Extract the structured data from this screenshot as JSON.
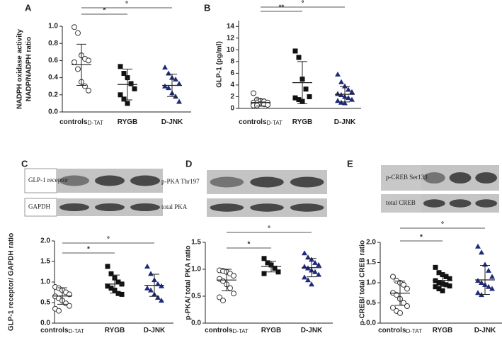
{
  "chart_data": [
    {
      "type": "dotplot",
      "panel": "A",
      "ylabel": [
        "NADPH oxidase activity",
        "NADP/NADPH ratio"
      ],
      "ylim": [
        0,
        1
      ],
      "yticks": [
        {
          "value": 0,
          "label": "0.0"
        },
        0.2,
        0.4,
        0.6,
        0.8,
        {
          "value": 1,
          "label": "1.0"
        }
      ],
      "comparisons": [
        "*",
        "°"
      ],
      "series": [
        {
          "name": "controls",
          "subscript": "D-TAT",
          "marker": "circle",
          "color": "#333333",
          "values": [
            0.99,
            0.92,
            0.66,
            0.62,
            0.6,
            0.58,
            0.5,
            0.35,
            0.3,
            0.25
          ],
          "mean": 0.55,
          "sd": 0.24
        },
        {
          "name": "RYGB",
          "marker": "square",
          "color": "#111111",
          "values": [
            0.53,
            0.45,
            0.4,
            0.33,
            0.27,
            0.2,
            0.15,
            0.1
          ],
          "mean": 0.32,
          "sd": 0.18
        },
        {
          "name": "D-JNK",
          "marker": "triangle",
          "color": "#1f2a7a",
          "values": [
            0.52,
            0.45,
            0.4,
            0.38,
            0.33,
            0.3,
            0.28,
            0.22,
            0.18,
            0.12
          ],
          "mean": 0.31,
          "sd": 0.13
        }
      ]
    },
    {
      "type": "dotplot",
      "panel": "B",
      "ylabel": [
        "GLP-1 (pg/ml)"
      ],
      "ylim": [
        0,
        15
      ],
      "yticks": [
        0,
        2,
        4,
        6,
        8,
        10,
        12,
        14
      ],
      "comparisons": [
        "**",
        "°"
      ],
      "series": [
        {
          "name": "controls",
          "subscript": "D-TAT",
          "marker": "circle",
          "color": "#333333",
          "values": [
            2.6,
            1.5,
            1.3,
            1.2,
            1.0,
            1.0,
            0.9,
            0.8,
            0.7,
            0.6,
            0.5,
            0.5
          ],
          "mean": 1.0,
          "sd": 0.6
        },
        {
          "name": "RYGB",
          "marker": "square",
          "color": "#111111",
          "values": [
            9.8,
            8.7,
            5.0,
            3.3,
            2.0,
            1.8,
            1.5,
            1.2
          ],
          "mean": 4.4,
          "sd": 3.6
        },
        {
          "name": "D-JNK",
          "marker": "triangle",
          "color": "#1f2a7a",
          "values": [
            5.8,
            4.5,
            3.8,
            3.2,
            2.8,
            2.5,
            2.3,
            2.0,
            1.8,
            1.5,
            1.3,
            1.0,
            0.9
          ],
          "mean": 2.4,
          "sd": 1.3
        }
      ]
    },
    {
      "type": "dotplot",
      "panel": "C",
      "ylabel": [
        "GLP-1 receptor/ GAPDH ratio"
      ],
      "blots": [
        "GLP-1 receptor",
        "GAPDH"
      ],
      "ylim": [
        0,
        2
      ],
      "yticks": [
        {
          "value": 0,
          "label": "0.0"
        },
        0.5,
        {
          "value": 1,
          "label": "1.0"
        },
        1.5,
        {
          "value": 2,
          "label": "2.0"
        }
      ],
      "comparisons": [
        "*",
        "°"
      ],
      "series": [
        {
          "name": "controls",
          "subscript": "D-TAT",
          "marker": "circle",
          "color": "#333333",
          "values": [
            0.88,
            0.85,
            0.8,
            0.75,
            0.7,
            0.65,
            0.6,
            0.55,
            0.48,
            0.42,
            0.35,
            0.3
          ],
          "mean": 0.66,
          "sd": 0.2
        },
        {
          "name": "RYGB",
          "marker": "square",
          "color": "#111111",
          "values": [
            1.38,
            1.2,
            1.1,
            1.0,
            0.95,
            0.9,
            0.85,
            0.8,
            0.72,
            0.7
          ],
          "mean": 0.95,
          "sd": 0.22
        },
        {
          "name": "D-JNK",
          "marker": "triangle",
          "color": "#1f2a7a",
          "values": [
            1.38,
            1.2,
            1.05,
            0.95,
            0.9,
            0.85,
            0.8,
            0.7,
            0.62,
            0.55
          ],
          "mean": 0.92,
          "sd": 0.27
        }
      ]
    },
    {
      "type": "dotplot",
      "panel": "D",
      "ylabel": [
        "p-PKA/ total PKA ratio"
      ],
      "blots": [
        "p-PKA Thr197",
        "total PKA"
      ],
      "ylim": [
        0,
        1.5
      ],
      "yticks": [
        {
          "value": 0,
          "label": "0.0"
        },
        0.5,
        {
          "value": 1,
          "label": "1.0"
        },
        1.5
      ],
      "comparisons": [
        "*",
        "°"
      ],
      "series": [
        {
          "name": "controls",
          "subscript": "D-TAT",
          "marker": "circle",
          "color": "#333333",
          "values": [
            0.98,
            0.97,
            0.95,
            0.92,
            0.88,
            0.82,
            0.78,
            0.72,
            0.65,
            0.55,
            0.48,
            0.42
          ],
          "mean": 0.8,
          "sd": 0.2
        },
        {
          "name": "RYGB",
          "marker": "square",
          "color": "#111111",
          "values": [
            1.2,
            1.12,
            1.08,
            1.02,
            0.95,
            0.92
          ],
          "mean": 1.05,
          "sd": 0.1
        },
        {
          "name": "D-JNK",
          "marker": "triangle",
          "color": "#1f2a7a",
          "values": [
            1.3,
            1.22,
            1.18,
            1.12,
            1.08,
            1.05,
            1.02,
            0.98,
            0.95,
            0.9,
            0.85,
            0.8,
            0.72
          ],
          "mean": 1.03,
          "sd": 0.17
        }
      ]
    },
    {
      "type": "dotplot",
      "panel": "E",
      "ylabel": [
        "p-CREB/ total CREB ratio"
      ],
      "blots": [
        "p-CREB Ser133",
        "total CREB"
      ],
      "ylim": [
        0,
        2
      ],
      "yticks": [
        {
          "value": 0,
          "label": "0.0"
        },
        0.5,
        {
          "value": 1,
          "label": "1.0"
        },
        1.5,
        {
          "value": 2,
          "label": "2.0"
        }
      ],
      "comparisons": [
        "*",
        "°"
      ],
      "series": [
        {
          "name": "controls",
          "subscript": "D-TAT",
          "marker": "circle",
          "color": "#333333",
          "values": [
            1.15,
            1.05,
            1.0,
            0.95,
            0.85,
            0.75,
            0.7,
            0.6,
            0.5,
            0.42,
            0.38,
            0.3,
            0.25
          ],
          "mean": 0.74,
          "sd": 0.3
        },
        {
          "name": "RYGB",
          "marker": "square",
          "color": "#111111",
          "values": [
            1.38,
            1.25,
            1.2,
            1.15,
            1.1,
            1.05,
            1.0,
            0.98,
            0.95,
            0.92,
            0.9,
            0.85,
            0.8
          ],
          "mean": 1.06,
          "sd": 0.15
        },
        {
          "name": "D-JNK",
          "marker": "triangle",
          "color": "#1f2a7a",
          "values": [
            1.9,
            1.75,
            1.45,
            1.3,
            1.15,
            1.05,
            1.0,
            0.95,
            0.9,
            0.85,
            0.75,
            0.7
          ],
          "mean": 1.07,
          "sd": 0.36
        }
      ]
    }
  ]
}
